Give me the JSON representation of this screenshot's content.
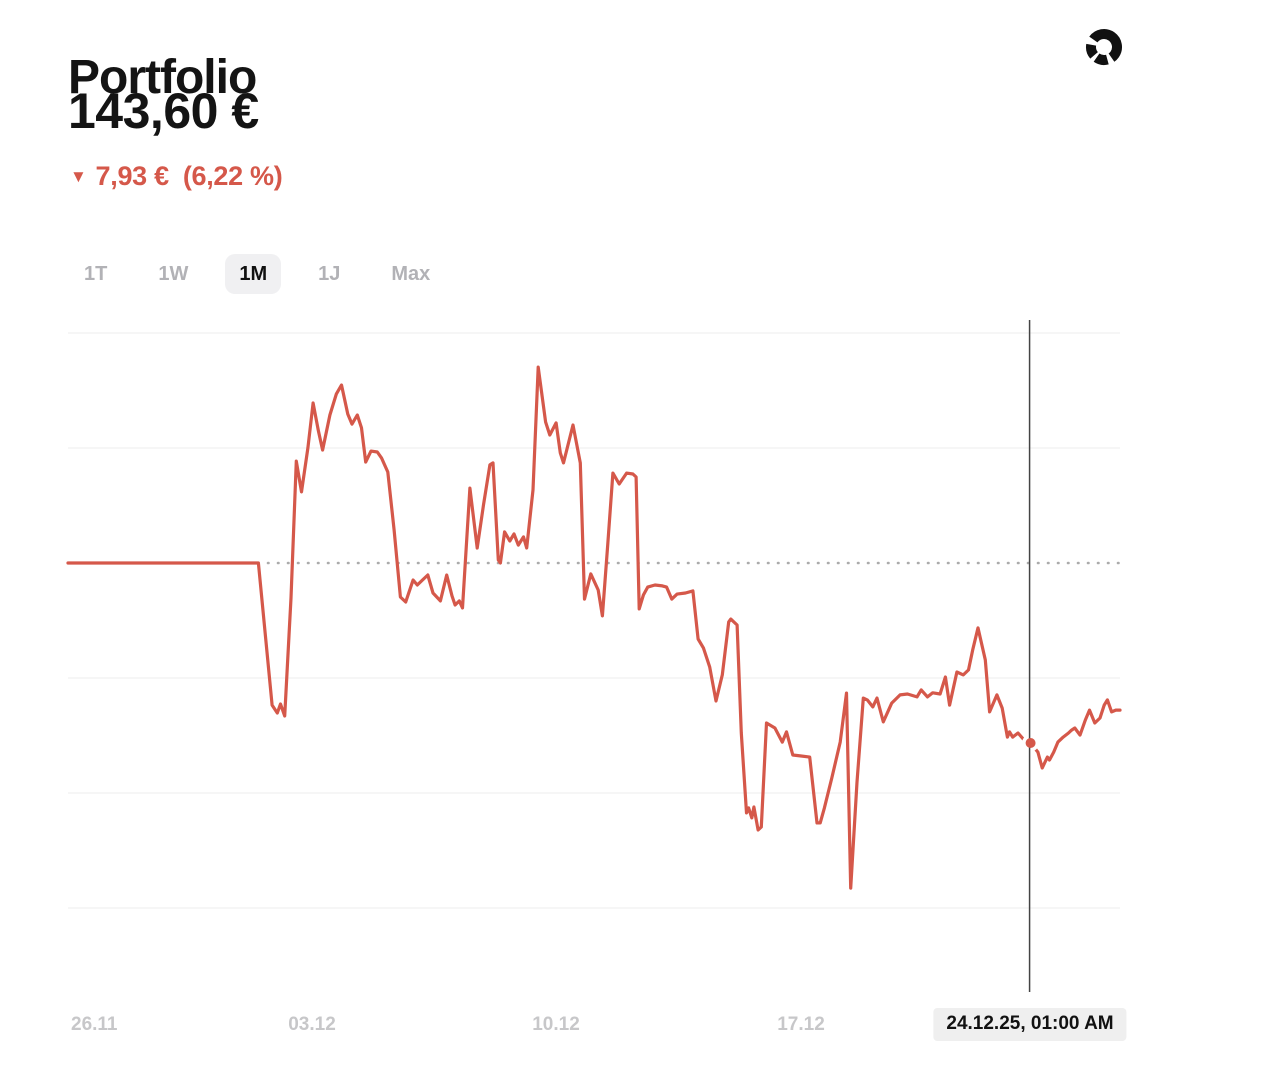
{
  "header": {
    "title": "Portfolio",
    "value": "143,60 €",
    "change": {
      "direction": "down",
      "arrow": "▼",
      "amount": "7,93 €",
      "percent": "(6,22 %)"
    }
  },
  "allocation_icon": "donut-chart",
  "tabs": [
    {
      "label": "1T",
      "active": false
    },
    {
      "label": "1W",
      "active": false
    },
    {
      "label": "1M",
      "active": true
    },
    {
      "label": "1J",
      "active": false
    },
    {
      "label": "Max",
      "active": false
    }
  ],
  "colors": {
    "accent": "#d5584a",
    "text": "#141414",
    "inactive_tab": "#b2b2b6",
    "tick_label": "#c7c7c9",
    "baseline_dots": "#ababab",
    "gridline": "#f4f4f4",
    "cursor_line": "#444444",
    "tooltip_bg": "#efefef"
  },
  "chart_data": {
    "type": "line",
    "title": "Portfolio value, 1 month",
    "unit": "EUR",
    "currency_symbol": "€",
    "start_value": 151.53,
    "current_value": 143.6,
    "change_value": -7.93,
    "change_percent": -6.22,
    "line_color": "#d5584a",
    "baseline": {
      "value": 151.53,
      "style": "dotted"
    },
    "grid": "horizontal-faint",
    "ylim": [
      131.8,
      161.7
    ],
    "x_tick_labels": [
      "26.11",
      "03.12",
      "10.12",
      "17.12"
    ],
    "cursor": {
      "date_label": "24.12.25, 01:00 AM",
      "value": 143.6,
      "x_pct": 91.5
    },
    "points": [
      [
        0,
        151.53
      ],
      [
        17.8,
        151.53
      ],
      [
        18.1,
        151.53
      ],
      [
        19.4,
        145.27
      ],
      [
        19.9,
        144.92
      ],
      [
        20.2,
        145.32
      ],
      [
        20.6,
        144.79
      ],
      [
        21.2,
        149.99
      ],
      [
        21.7,
        156.02
      ],
      [
        22.2,
        154.66
      ],
      [
        22.8,
        156.6
      ],
      [
        23.3,
        158.58
      ],
      [
        23.8,
        157.35
      ],
      [
        24.2,
        156.51
      ],
      [
        24.9,
        158.05
      ],
      [
        25.5,
        158.97
      ],
      [
        26,
        159.37
      ],
      [
        26.6,
        158.09
      ],
      [
        27,
        157.65
      ],
      [
        27.5,
        158.05
      ],
      [
        27.9,
        157.48
      ],
      [
        28.3,
        155.98
      ],
      [
        28.8,
        156.46
      ],
      [
        29.4,
        156.42
      ],
      [
        29.8,
        156.16
      ],
      [
        30.4,
        155.54
      ],
      [
        31,
        152.99
      ],
      [
        31.6,
        150.03
      ],
      [
        32.1,
        149.81
      ],
      [
        32.8,
        150.78
      ],
      [
        33.2,
        150.56
      ],
      [
        33.7,
        150.78
      ],
      [
        34.2,
        151
      ],
      [
        34.7,
        150.21
      ],
      [
        35.4,
        149.86
      ],
      [
        36,
        151
      ],
      [
        36.5,
        150.08
      ],
      [
        36.8,
        149.68
      ],
      [
        37.2,
        149.86
      ],
      [
        37.5,
        149.55
      ],
      [
        38.2,
        154.83
      ],
      [
        38.9,
        152.19
      ],
      [
        39.5,
        154.09
      ],
      [
        40.1,
        155.85
      ],
      [
        40.4,
        155.94
      ],
      [
        40.9,
        151.66
      ],
      [
        41.1,
        151.53
      ],
      [
        41.5,
        152.9
      ],
      [
        42,
        152.5
      ],
      [
        42.4,
        152.81
      ],
      [
        42.8,
        152.32
      ],
      [
        43.3,
        152.68
      ],
      [
        43.6,
        152.19
      ],
      [
        44.2,
        154.75
      ],
      [
        44.7,
        160.16
      ],
      [
        45.4,
        157.74
      ],
      [
        45.8,
        157.17
      ],
      [
        46.4,
        157.7
      ],
      [
        46.8,
        156.38
      ],
      [
        47.1,
        155.94
      ],
      [
        48,
        157.61
      ],
      [
        48.7,
        155.94
      ],
      [
        49.1,
        149.94
      ],
      [
        49.7,
        151.05
      ],
      [
        50.4,
        150.34
      ],
      [
        50.8,
        149.2
      ],
      [
        51.3,
        152.32
      ],
      [
        51.8,
        155.49
      ],
      [
        52.4,
        155.01
      ],
      [
        53.1,
        155.49
      ],
      [
        53.7,
        155.45
      ],
      [
        54,
        155.32
      ],
      [
        54.3,
        149.51
      ],
      [
        54.7,
        150.12
      ],
      [
        55.1,
        150.47
      ],
      [
        55.8,
        150.56
      ],
      [
        56.5,
        150.52
      ],
      [
        56.9,
        150.47
      ],
      [
        57.4,
        149.94
      ],
      [
        57.9,
        150.16
      ],
      [
        58.7,
        150.21
      ],
      [
        59.4,
        150.3
      ],
      [
        59.9,
        148.18
      ],
      [
        60.4,
        147.79
      ],
      [
        61,
        146.95
      ],
      [
        61.6,
        145.45
      ],
      [
        62.2,
        146.6
      ],
      [
        62.8,
        148.93
      ],
      [
        63,
        149.06
      ],
      [
        63.6,
        148.8
      ],
      [
        64,
        144.04
      ],
      [
        64.5,
        140.52
      ],
      [
        64.7,
        140.74
      ],
      [
        65,
        140.3
      ],
      [
        65.2,
        140.78
      ],
      [
        65.6,
        139.77
      ],
      [
        65.9,
        139.9
      ],
      [
        66.4,
        144.48
      ],
      [
        67.2,
        144.26
      ],
      [
        67.9,
        143.64
      ],
      [
        68.3,
        144.09
      ],
      [
        68.9,
        143.07
      ],
      [
        69.7,
        143.03
      ],
      [
        70.5,
        142.98
      ],
      [
        71.2,
        140.08
      ],
      [
        71.5,
        140.08
      ],
      [
        71.9,
        140.74
      ],
      [
        72.6,
        142.06
      ],
      [
        73.4,
        143.64
      ],
      [
        74,
        145.8
      ],
      [
        74.4,
        137.21
      ],
      [
        75,
        141.88
      ],
      [
        75.6,
        145.58
      ],
      [
        76,
        145.49
      ],
      [
        76.5,
        145.19
      ],
      [
        76.9,
        145.58
      ],
      [
        77.5,
        144.53
      ],
      [
        78.3,
        145.36
      ],
      [
        79.1,
        145.72
      ],
      [
        79.8,
        145.76
      ],
      [
        80.7,
        145.63
      ],
      [
        81.1,
        145.94
      ],
      [
        81.7,
        145.63
      ],
      [
        82.2,
        145.81
      ],
      [
        82.9,
        145.76
      ],
      [
        83.4,
        146.51
      ],
      [
        83.8,
        145.27
      ],
      [
        84.5,
        146.73
      ],
      [
        85.1,
        146.6
      ],
      [
        85.6,
        146.82
      ],
      [
        86,
        147.7
      ],
      [
        86.5,
        148.67
      ],
      [
        87.2,
        147.26
      ],
      [
        87.6,
        144.97
      ],
      [
        88.3,
        145.72
      ],
      [
        88.8,
        145.14
      ],
      [
        89.3,
        143.86
      ],
      [
        89.5,
        144.09
      ],
      [
        89.8,
        143.86
      ],
      [
        90.3,
        144.04
      ],
      [
        90.8,
        143.78
      ],
      [
        91.5,
        143.6
      ],
      [
        92.2,
        143.2
      ],
      [
        92.6,
        142.5
      ],
      [
        93.1,
        142.98
      ],
      [
        93.3,
        142.85
      ],
      [
        93.7,
        143.2
      ],
      [
        94.1,
        143.64
      ],
      [
        94.6,
        143.86
      ],
      [
        95.1,
        144.04
      ],
      [
        95.4,
        144.17
      ],
      [
        95.7,
        144.26
      ],
      [
        96.2,
        143.95
      ],
      [
        96.7,
        144.61
      ],
      [
        97.1,
        145.05
      ],
      [
        97.6,
        144.48
      ],
      [
        98.1,
        144.7
      ],
      [
        98.5,
        145.27
      ],
      [
        98.8,
        145.5
      ],
      [
        99.2,
        144.97
      ],
      [
        99.6,
        145.05
      ],
      [
        100,
        145.05
      ]
    ]
  }
}
